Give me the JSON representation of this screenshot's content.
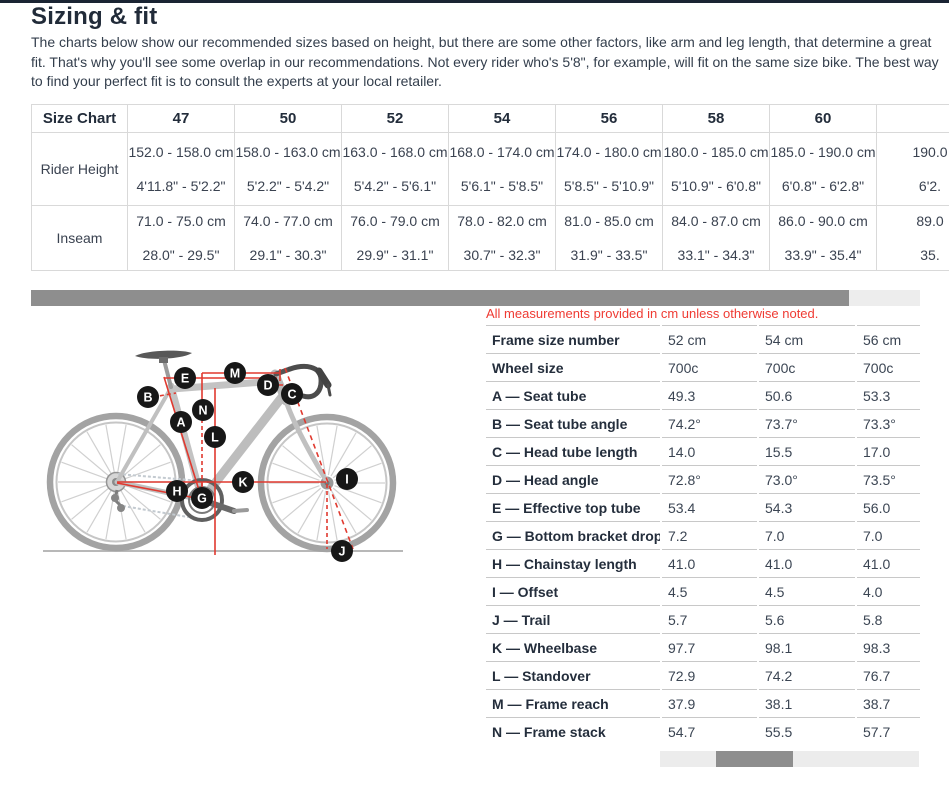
{
  "header": {
    "title": "Sizing & fit",
    "intro": "The charts below show our recommended sizes based on height, but there are some other factors, like arm and leg length, that determine a great fit. That's why you'll see some overlap in our recommendations. Not every rider who's 5'8\", for example, will fit on the same size bike. The best way to find your perfect fit is to consult the experts at your local retailer."
  },
  "size_chart": {
    "corner_label": "Size Chart",
    "row_labels": [
      "Rider Height",
      "Inseam"
    ],
    "columns": [
      {
        "size": "47",
        "height_cm": "152.0 - 158.0 cm",
        "height_in": "4'11.8\" - 5'2.2\"",
        "inseam_cm": "71.0 - 75.0 cm",
        "inseam_in": "28.0\" - 29.5\""
      },
      {
        "size": "50",
        "height_cm": "158.0 - 163.0 cm",
        "height_in": "5'2.2\" - 5'4.2\"",
        "inseam_cm": "74.0 - 77.0 cm",
        "inseam_in": "29.1\" - 30.3\""
      },
      {
        "size": "52",
        "height_cm": "163.0 - 168.0 cm",
        "height_in": "5'4.2\" - 5'6.1\"",
        "inseam_cm": "76.0 - 79.0 cm",
        "inseam_in": "29.9\" - 31.1\""
      },
      {
        "size": "54",
        "height_cm": "168.0 - 174.0 cm",
        "height_in": "5'6.1\" - 5'8.5\"",
        "inseam_cm": "78.0 - 82.0 cm",
        "inseam_in": "30.7\" - 32.3\""
      },
      {
        "size": "56",
        "height_cm": "174.0 - 180.0 cm",
        "height_in": "5'8.5\" - 5'10.9\"",
        "inseam_cm": "81.0 - 85.0 cm",
        "inseam_in": "31.9\" - 33.5\""
      },
      {
        "size": "58",
        "height_cm": "180.0 - 185.0 cm",
        "height_in": "5'10.9\" - 6'0.8\"",
        "inseam_cm": "84.0 - 87.0 cm",
        "inseam_in": "33.1\" - 34.3\""
      },
      {
        "size": "60",
        "height_cm": "185.0 - 190.0 cm",
        "height_in": "6'0.8\" - 6'2.8\"",
        "inseam_cm": "86.0 - 90.0 cm",
        "inseam_in": "33.9\" - 35.4\""
      },
      {
        "size": "",
        "height_cm": "190.0",
        "height_in": "6'2.",
        "inseam_cm": "89.0",
        "inseam_in": "35."
      }
    ]
  },
  "geometry": {
    "note": "All measurements provided in cm unless otherwise noted.",
    "rows": [
      {
        "label": "Frame size number",
        "values": [
          "52 cm",
          "54 cm",
          "56 cm"
        ]
      },
      {
        "label": "Wheel size",
        "values": [
          "700c",
          "700c",
          "700c"
        ]
      },
      {
        "label": "A — Seat tube",
        "values": [
          "49.3",
          "50.6",
          "53.3"
        ]
      },
      {
        "label": "B — Seat tube angle",
        "values": [
          "74.2°",
          "73.7°",
          "73.3°"
        ]
      },
      {
        "label": "C — Head tube length",
        "values": [
          "14.0",
          "15.5",
          "17.0"
        ]
      },
      {
        "label": "D — Head angle",
        "values": [
          "72.8°",
          "73.0°",
          "73.5°"
        ]
      },
      {
        "label": "E — Effective top tube",
        "values": [
          "53.4",
          "54.3",
          "56.0"
        ]
      },
      {
        "label": "G — Bottom bracket drop",
        "values": [
          "7.2",
          "7.0",
          "7.0"
        ]
      },
      {
        "label": "H — Chainstay length",
        "values": [
          "41.0",
          "41.0",
          "41.0"
        ]
      },
      {
        "label": "I — Offset",
        "values": [
          "4.5",
          "4.5",
          "4.0"
        ]
      },
      {
        "label": "J — Trail",
        "values": [
          "5.7",
          "5.6",
          "5.8"
        ]
      },
      {
        "label": "K — Wheelbase",
        "values": [
          "97.7",
          "98.1",
          "98.3"
        ]
      },
      {
        "label": "L — Standover",
        "values": [
          "72.9",
          "74.2",
          "76.7"
        ]
      },
      {
        "label": "M — Frame reach",
        "values": [
          "37.9",
          "38.1",
          "38.7"
        ]
      },
      {
        "label": "N — Frame stack",
        "values": [
          "54.7",
          "55.5",
          "57.7"
        ]
      }
    ]
  },
  "diagram": {
    "markers": [
      "A",
      "B",
      "C",
      "D",
      "E",
      "G",
      "H",
      "I",
      "J",
      "K",
      "L",
      "M",
      "N"
    ]
  },
  "colors": {
    "accent_red": "#e0392f",
    "note_red": "#ef3b33",
    "heading_navy": "#212b39",
    "scroll_thumb": "#8e8e8e"
  }
}
